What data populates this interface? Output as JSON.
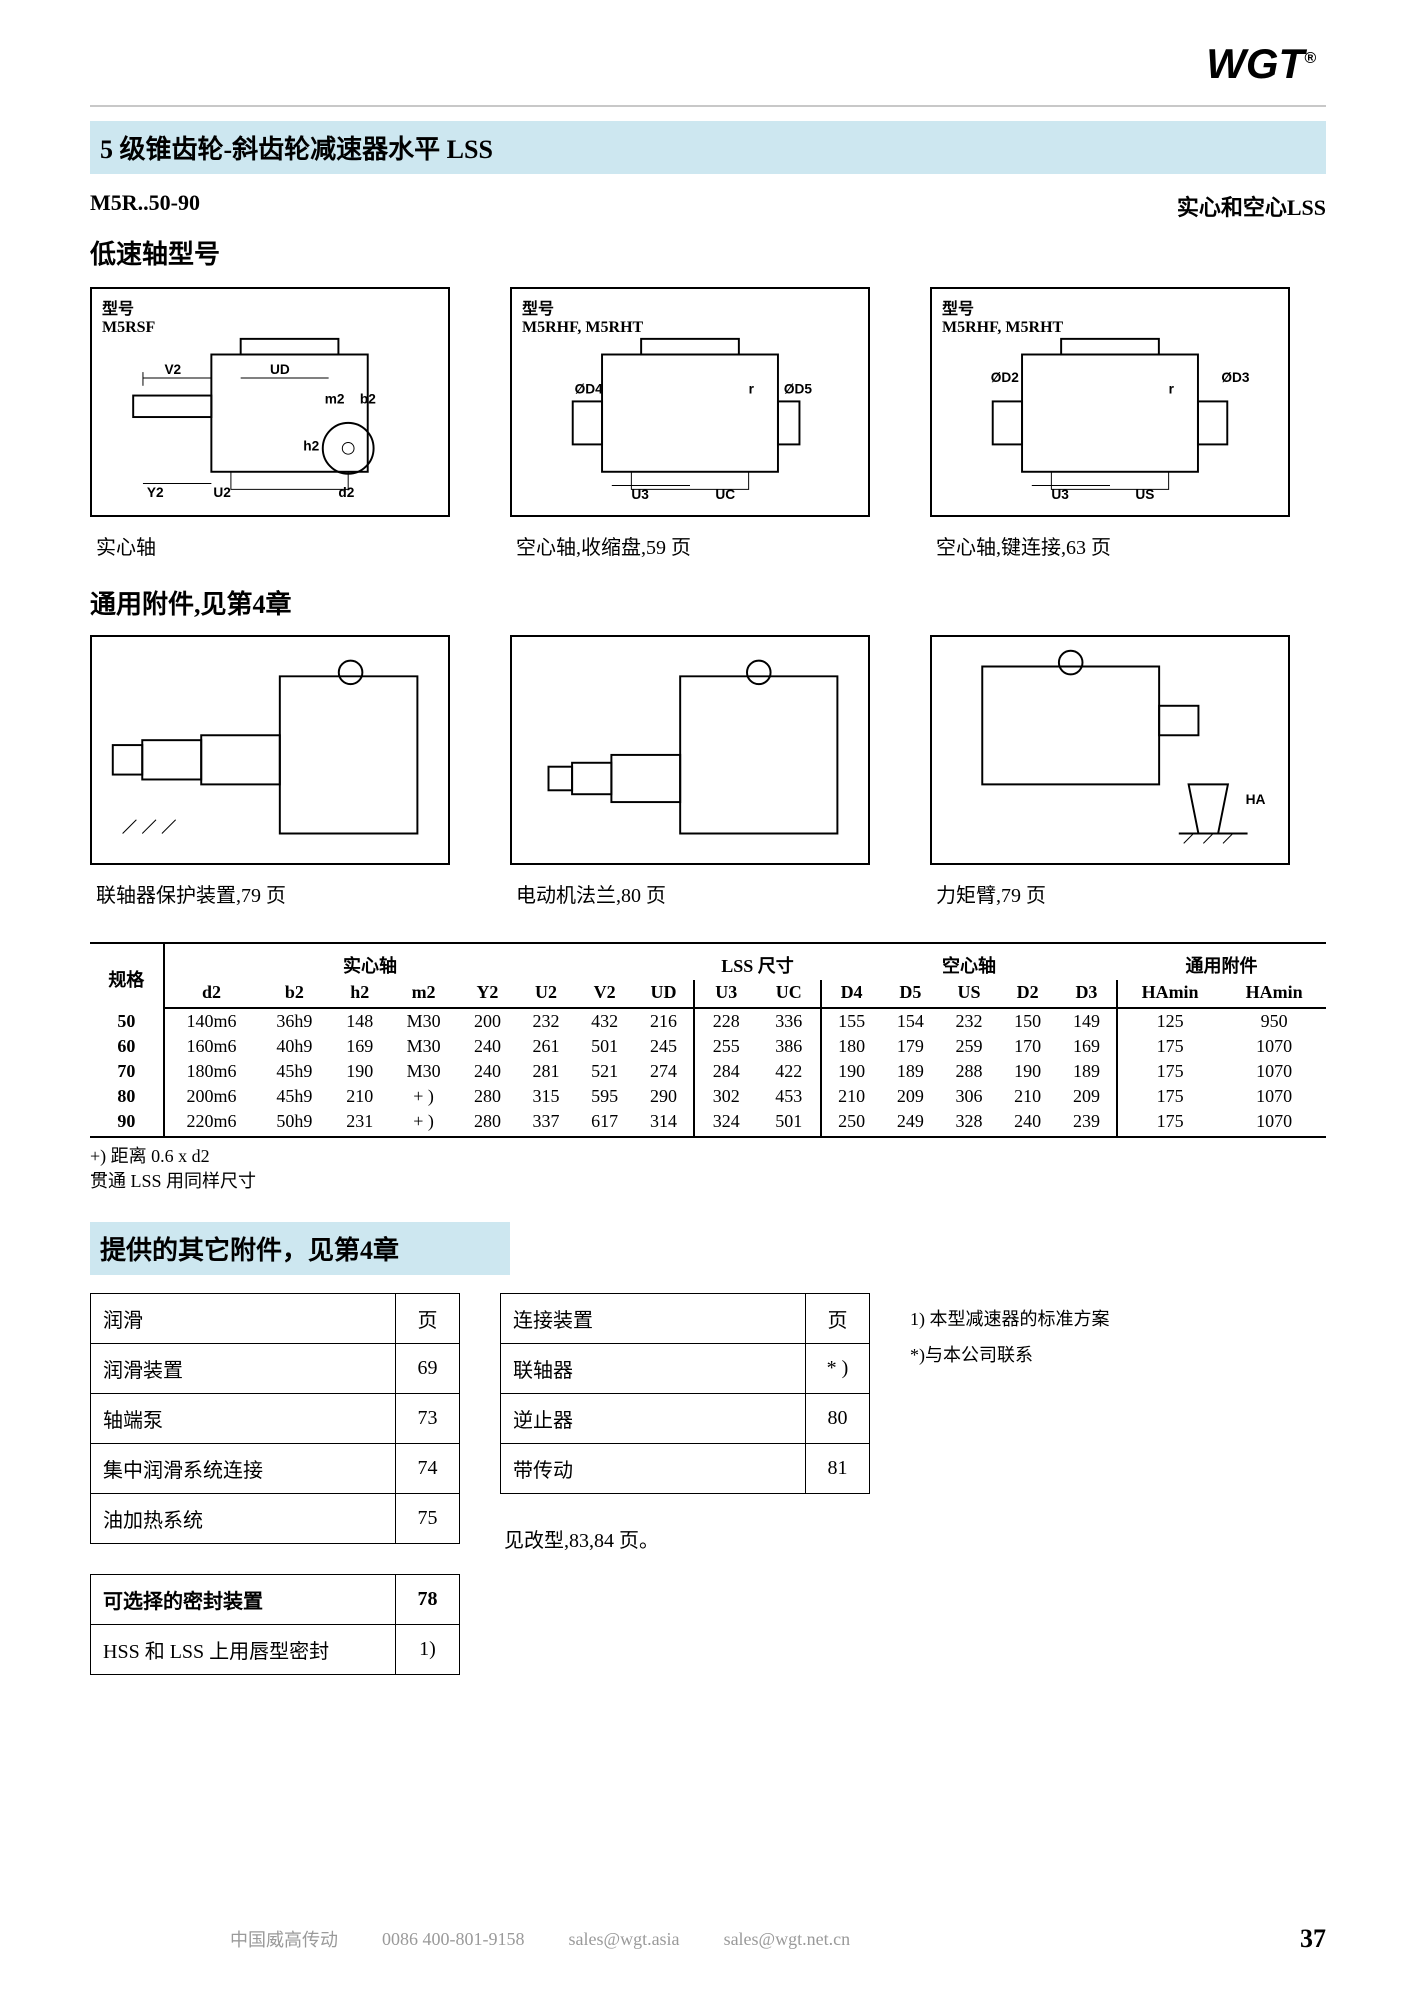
{
  "logo": {
    "text": "WGT",
    "reg": "®"
  },
  "title": "5 级锥齿轮-斜齿轮减速器水平 LSS",
  "model_left": "M5R..50-90",
  "model_right": "实心和空心LSS",
  "low_speed_header": "低速轴型号",
  "figs": [
    {
      "model_label": "型号",
      "model": "M5RSF",
      "caption": "实心轴",
      "dims": [
        "V2",
        "UD",
        "m2",
        "b2",
        "h2",
        "Y2",
        "U2",
        "d2"
      ]
    },
    {
      "model_label": "型号",
      "model": "M5RHF, M5RHT",
      "caption": "空心轴,收缩盘,59 页",
      "dims": [
        "ØD4",
        "ØD5",
        "r",
        "U3",
        "UC"
      ]
    },
    {
      "model_label": "型号",
      "model": "M5RHF, M5RHT",
      "caption": "空心轴,键连接,63 页",
      "dims": [
        "ØD2",
        "ØD3",
        "r",
        "U3",
        "US"
      ]
    }
  ],
  "general_acc_header": "通用附件,见第4章",
  "acc_captions": [
    "联轴器保护装置,79 页",
    "电动机法兰,80 页",
    "力矩臂,79 页"
  ],
  "spec_label": "规格",
  "groups": [
    "实心轴",
    "LSS 尺寸",
    "空心轴",
    "通用附件"
  ],
  "columns": [
    "d2",
    "b2",
    "h2",
    "m2",
    "Y2",
    "U2",
    "V2",
    "UD",
    "U3",
    "UC",
    "D4",
    "D5",
    "US",
    "D2",
    "D3",
    "HAmin",
    "HAmin"
  ],
  "rows": [
    {
      "k": "50",
      "v": [
        "140m6",
        "36h9",
        "148",
        "M30",
        "200",
        "232",
        "432",
        "216",
        "228",
        "336",
        "155",
        "154",
        "232",
        "150",
        "149",
        "125",
        "950"
      ]
    },
    {
      "k": "60",
      "v": [
        "160m6",
        "40h9",
        "169",
        "M30",
        "240",
        "261",
        "501",
        "245",
        "255",
        "386",
        "180",
        "179",
        "259",
        "170",
        "169",
        "175",
        "1070"
      ]
    },
    {
      "k": "70",
      "v": [
        "180m6",
        "45h9",
        "190",
        "M30",
        "240",
        "281",
        "521",
        "274",
        "284",
        "422",
        "190",
        "189",
        "288",
        "190",
        "189",
        "175",
        "1070"
      ]
    },
    {
      "k": "80",
      "v": [
        "200m6",
        "45h9",
        "210",
        "+ )",
        "280",
        "315",
        "595",
        "290",
        "302",
        "453",
        "210",
        "209",
        "306",
        "210",
        "209",
        "175",
        "1070"
      ]
    },
    {
      "k": "90",
      "v": [
        "220m6",
        "50h9",
        "231",
        "+ )",
        "280",
        "337",
        "617",
        "314",
        "324",
        "501",
        "250",
        "249",
        "328",
        "240",
        "239",
        "175",
        "1070"
      ]
    }
  ],
  "table_notes": [
    "+) 距离 0.6 x d2",
    "贯通 LSS 用同样尺寸"
  ],
  "other_acc_header": "提供的其它附件，见第4章",
  "lube_table": {
    "header": [
      "润滑",
      "页"
    ],
    "rows": [
      [
        "润滑装置",
        "69"
      ],
      [
        "轴端泵",
        "73"
      ],
      [
        "集中润滑系统连接",
        "74"
      ],
      [
        "油加热系统",
        "75"
      ]
    ]
  },
  "conn_table": {
    "header": [
      "连接装置",
      "页"
    ],
    "rows": [
      [
        "联轴器",
        "* )"
      ],
      [
        "逆止器",
        "80"
      ],
      [
        "带传动",
        "81"
      ]
    ]
  },
  "side_notes": [
    "1) 本型减速器的标准方案",
    "*)与本公司联系"
  ],
  "see_mods": "见改型,83,84 页。",
  "seal_table": {
    "header": [
      "可选择的密封装置",
      "78"
    ],
    "rows": [
      [
        "HSS 和 LSS 上用唇型密封",
        "1)"
      ]
    ]
  },
  "footer": {
    "company": "中国威高传动",
    "phone": "0086  400-801-9158",
    "email1": "sales@wgt.asia",
    "email2": "sales@wgt.net.cn",
    "page": "37"
  },
  "colors": {
    "header_bg": "#cde7f0",
    "divider": "#c8c8c8",
    "text": "#000000",
    "footer_text": "#9a9a9a",
    "bg": "#ffffff"
  }
}
